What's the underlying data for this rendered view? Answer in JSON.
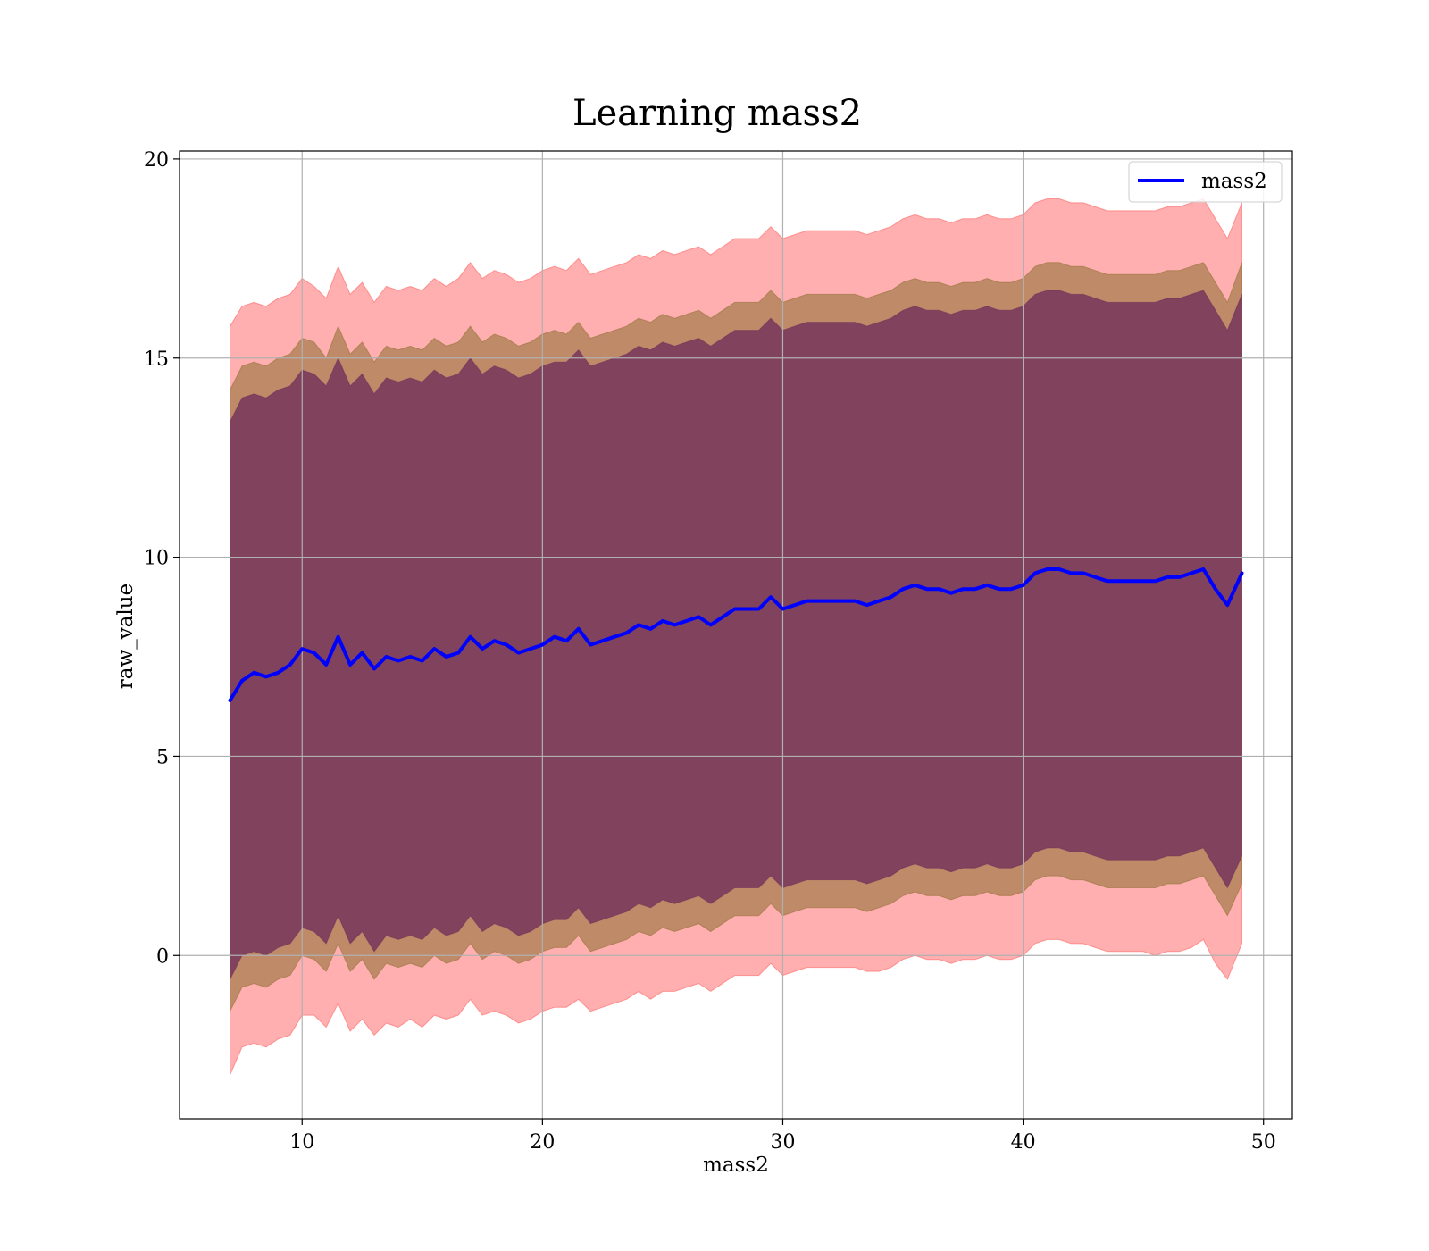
{
  "chart_data": {
    "type": "area",
    "title": "Learning mass2",
    "xlabel": "mass2",
    "ylabel": "raw_value",
    "xlim": [
      4.9,
      51.2
    ],
    "ylim": [
      -4.1,
      20.2
    ],
    "xticks": [
      10,
      20,
      30,
      40,
      50
    ],
    "yticks": [
      0,
      5,
      10,
      15,
      20
    ],
    "grid": true,
    "legend": {
      "placement": "top-right",
      "entries": [
        "mass2"
      ]
    },
    "colors": {
      "line": "#0000ff",
      "outer_band": "#ff4d4d",
      "middle_band": "#8b6b2e",
      "inner_band": "#6b2a5a"
    },
    "x": [
      7.0,
      7.5,
      8.0,
      8.5,
      9.0,
      9.5,
      10.0,
      10.5,
      11.0,
      11.5,
      12.0,
      12.5,
      13.0,
      13.5,
      14.0,
      14.5,
      15.0,
      15.5,
      16.0,
      16.5,
      17.0,
      17.5,
      18.0,
      18.5,
      19.0,
      19.5,
      20.0,
      20.5,
      21.0,
      21.5,
      22.0,
      22.5,
      23.0,
      23.5,
      24.0,
      24.5,
      25.0,
      25.5,
      26.0,
      26.5,
      27.0,
      27.5,
      28.0,
      28.5,
      29.0,
      29.5,
      30.0,
      30.5,
      31.0,
      31.5,
      32.0,
      32.5,
      33.0,
      33.5,
      34.0,
      34.5,
      35.0,
      35.5,
      36.0,
      36.5,
      37.0,
      37.5,
      38.0,
      38.5,
      39.0,
      39.5,
      40.0,
      40.5,
      41.0,
      41.5,
      42.0,
      42.5,
      43.0,
      43.5,
      44.0,
      44.5,
      45.0,
      45.5,
      46.0,
      46.5,
      47.0,
      47.5,
      48.0,
      48.5,
      49.1
    ],
    "series": [
      {
        "name": "mass2",
        "values": [
          6.4,
          6.9,
          7.1,
          7.0,
          7.1,
          7.3,
          7.7,
          7.6,
          7.3,
          8.0,
          7.3,
          7.6,
          7.2,
          7.5,
          7.4,
          7.5,
          7.4,
          7.7,
          7.5,
          7.6,
          8.0,
          7.7,
          7.9,
          7.8,
          7.6,
          7.7,
          7.8,
          8.0,
          7.9,
          8.2,
          7.8,
          7.9,
          8.0,
          8.1,
          8.3,
          8.2,
          8.4,
          8.3,
          8.4,
          8.5,
          8.3,
          8.5,
          8.7,
          8.7,
          8.7,
          9.0,
          8.7,
          8.8,
          8.9,
          8.9,
          8.9,
          8.9,
          8.9,
          8.8,
          8.9,
          9.0,
          9.2,
          9.3,
          9.2,
          9.2,
          9.1,
          9.2,
          9.2,
          9.3,
          9.2,
          9.2,
          9.3,
          9.6,
          9.7,
          9.7,
          9.6,
          9.6,
          9.5,
          9.4,
          9.4,
          9.4,
          9.4,
          9.4,
          9.5,
          9.5,
          9.6,
          9.7,
          9.2,
          8.8,
          9.6
        ]
      }
    ],
    "bands": [
      {
        "lower": [
          -3.0,
          -2.3,
          -2.2,
          -2.3,
          -2.1,
          -2.0,
          -1.5,
          -1.5,
          -1.8,
          -1.2,
          -1.9,
          -1.6,
          -2.0,
          -1.7,
          -1.8,
          -1.6,
          -1.8,
          -1.5,
          -1.6,
          -1.5,
          -1.1,
          -1.5,
          -1.4,
          -1.5,
          -1.7,
          -1.6,
          -1.4,
          -1.3,
          -1.3,
          -1.1,
          -1.4,
          -1.3,
          -1.2,
          -1.1,
          -0.9,
          -1.1,
          -0.9,
          -0.9,
          -0.8,
          -0.7,
          -0.9,
          -0.7,
          -0.5,
          -0.5,
          -0.5,
          -0.2,
          -0.5,
          -0.4,
          -0.3,
          -0.3,
          -0.3,
          -0.3,
          -0.3,
          -0.4,
          -0.4,
          -0.3,
          -0.1,
          0.0,
          -0.1,
          -0.1,
          -0.2,
          -0.1,
          -0.1,
          0.0,
          -0.1,
          -0.1,
          0.0,
          0.3,
          0.4,
          0.4,
          0.3,
          0.3,
          0.2,
          0.1,
          0.1,
          0.1,
          0.1,
          0.0,
          0.1,
          0.1,
          0.2,
          0.4,
          -0.2,
          -0.6,
          0.3
        ],
        "upper": [
          15.8,
          16.3,
          16.4,
          16.3,
          16.5,
          16.6,
          17.0,
          16.8,
          16.5,
          17.3,
          16.6,
          16.9,
          16.4,
          16.8,
          16.7,
          16.8,
          16.7,
          17.0,
          16.8,
          17.0,
          17.4,
          17.0,
          17.2,
          17.1,
          16.9,
          17.0,
          17.2,
          17.3,
          17.2,
          17.5,
          17.1,
          17.2,
          17.3,
          17.4,
          17.6,
          17.5,
          17.7,
          17.6,
          17.7,
          17.8,
          17.6,
          17.8,
          18.0,
          18.0,
          18.0,
          18.3,
          18.0,
          18.1,
          18.2,
          18.2,
          18.2,
          18.2,
          18.2,
          18.1,
          18.2,
          18.3,
          18.5,
          18.6,
          18.5,
          18.5,
          18.4,
          18.5,
          18.5,
          18.6,
          18.5,
          18.5,
          18.6,
          18.9,
          19.0,
          19.0,
          18.9,
          18.9,
          18.8,
          18.7,
          18.7,
          18.7,
          18.7,
          18.7,
          18.8,
          18.8,
          18.9,
          19.0,
          18.5,
          18.0,
          18.9
        ]
      },
      {
        "lower": [
          -1.4,
          -0.8,
          -0.7,
          -0.8,
          -0.6,
          -0.5,
          0.0,
          -0.1,
          -0.4,
          0.3,
          -0.4,
          -0.1,
          -0.6,
          -0.2,
          -0.3,
          -0.2,
          -0.3,
          0.0,
          -0.2,
          -0.1,
          0.3,
          -0.1,
          0.1,
          0.0,
          -0.2,
          -0.1,
          0.1,
          0.2,
          0.2,
          0.5,
          0.1,
          0.2,
          0.3,
          0.4,
          0.6,
          0.5,
          0.7,
          0.6,
          0.7,
          0.8,
          0.6,
          0.8,
          1.0,
          1.0,
          1.0,
          1.3,
          1.0,
          1.1,
          1.2,
          1.2,
          1.2,
          1.2,
          1.2,
          1.1,
          1.2,
          1.3,
          1.5,
          1.6,
          1.5,
          1.5,
          1.4,
          1.5,
          1.5,
          1.6,
          1.5,
          1.5,
          1.6,
          1.9,
          2.0,
          2.0,
          1.9,
          1.9,
          1.8,
          1.7,
          1.7,
          1.7,
          1.7,
          1.7,
          1.8,
          1.8,
          1.9,
          2.0,
          1.5,
          1.0,
          1.8
        ],
        "upper": [
          14.2,
          14.8,
          14.9,
          14.8,
          15.0,
          15.1,
          15.5,
          15.4,
          15.0,
          15.8,
          15.1,
          15.4,
          14.9,
          15.3,
          15.2,
          15.3,
          15.2,
          15.5,
          15.3,
          15.4,
          15.8,
          15.4,
          15.6,
          15.5,
          15.3,
          15.4,
          15.6,
          15.7,
          15.6,
          15.9,
          15.5,
          15.6,
          15.7,
          15.8,
          16.0,
          15.9,
          16.1,
          16.0,
          16.1,
          16.2,
          16.0,
          16.2,
          16.4,
          16.4,
          16.4,
          16.7,
          16.4,
          16.5,
          16.6,
          16.6,
          16.6,
          16.6,
          16.6,
          16.5,
          16.6,
          16.7,
          16.9,
          17.0,
          16.9,
          16.9,
          16.8,
          16.9,
          16.9,
          17.0,
          16.9,
          16.9,
          17.0,
          17.3,
          17.4,
          17.4,
          17.3,
          17.3,
          17.2,
          17.1,
          17.1,
          17.1,
          17.1,
          17.1,
          17.2,
          17.2,
          17.3,
          17.4,
          16.9,
          16.4,
          17.4
        ]
      },
      {
        "lower": [
          -0.6,
          0.0,
          0.1,
          0.0,
          0.2,
          0.3,
          0.7,
          0.6,
          0.3,
          1.0,
          0.3,
          0.6,
          0.1,
          0.5,
          0.4,
          0.5,
          0.4,
          0.7,
          0.5,
          0.6,
          1.0,
          0.6,
          0.8,
          0.7,
          0.5,
          0.6,
          0.8,
          0.9,
          0.9,
          1.2,
          0.8,
          0.9,
          1.0,
          1.1,
          1.3,
          1.2,
          1.4,
          1.3,
          1.4,
          1.5,
          1.3,
          1.5,
          1.7,
          1.7,
          1.7,
          2.0,
          1.7,
          1.8,
          1.9,
          1.9,
          1.9,
          1.9,
          1.9,
          1.8,
          1.9,
          2.0,
          2.2,
          2.3,
          2.2,
          2.2,
          2.1,
          2.2,
          2.2,
          2.3,
          2.2,
          2.2,
          2.3,
          2.6,
          2.7,
          2.7,
          2.6,
          2.6,
          2.5,
          2.4,
          2.4,
          2.4,
          2.4,
          2.4,
          2.5,
          2.5,
          2.6,
          2.7,
          2.2,
          1.7,
          2.5
        ],
        "upper": [
          13.4,
          14.0,
          14.1,
          14.0,
          14.2,
          14.3,
          14.7,
          14.6,
          14.3,
          15.0,
          14.3,
          14.6,
          14.1,
          14.5,
          14.4,
          14.5,
          14.4,
          14.7,
          14.5,
          14.6,
          15.0,
          14.6,
          14.8,
          14.7,
          14.5,
          14.6,
          14.8,
          14.9,
          14.9,
          15.2,
          14.8,
          14.9,
          15.0,
          15.1,
          15.3,
          15.2,
          15.4,
          15.3,
          15.4,
          15.5,
          15.3,
          15.5,
          15.7,
          15.7,
          15.7,
          16.0,
          15.7,
          15.8,
          15.9,
          15.9,
          15.9,
          15.9,
          15.9,
          15.8,
          15.9,
          16.0,
          16.2,
          16.3,
          16.2,
          16.2,
          16.1,
          16.2,
          16.2,
          16.3,
          16.2,
          16.2,
          16.3,
          16.6,
          16.7,
          16.7,
          16.6,
          16.6,
          16.5,
          16.4,
          16.4,
          16.4,
          16.4,
          16.4,
          16.5,
          16.5,
          16.6,
          16.7,
          16.2,
          15.7,
          16.6
        ]
      }
    ]
  }
}
